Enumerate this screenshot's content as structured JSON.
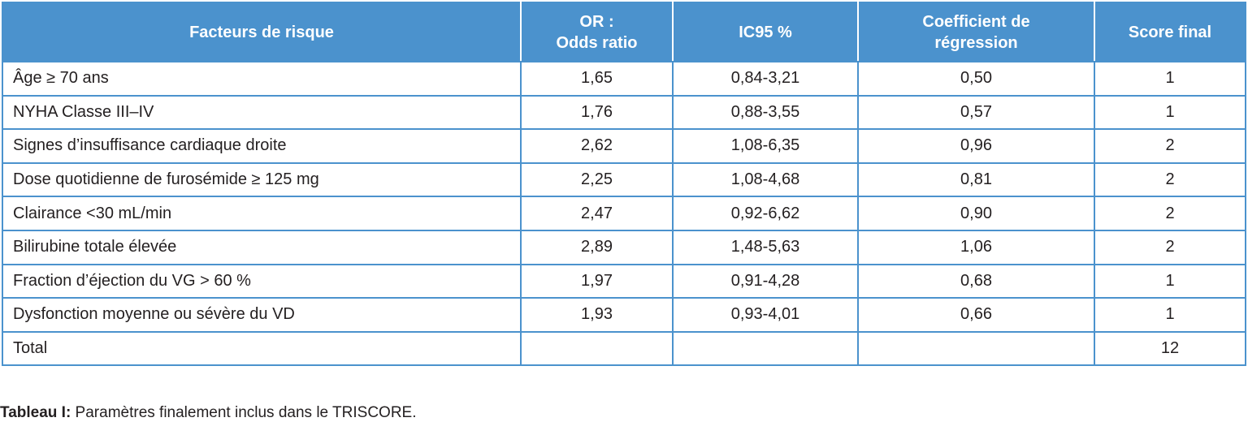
{
  "table": {
    "header": [
      "Facteurs de risque",
      "OR :\nOdds ratio",
      "IC95 %",
      "Coefficient de\nrégression",
      "Score final"
    ],
    "rows": [
      [
        "Âge ≥ 70 ans",
        "1,65",
        "0,84-3,21",
        "0,50",
        "1"
      ],
      [
        "NYHA Classe III–IV",
        "1,76",
        "0,88-3,55",
        "0,57",
        "1"
      ],
      [
        "Signes d’insuffisance cardiaque droite",
        "2,62",
        "1,08-6,35",
        "0,96",
        "2"
      ],
      [
        "Dose quotidienne de furosémide ≥ 125 mg",
        "2,25",
        "1,08-4,68",
        "0,81",
        "2"
      ],
      [
        "Clairance <30 mL/min",
        "2,47",
        "0,92-6,62",
        "0,90",
        "2"
      ],
      [
        "Bilirubine totale élevée",
        "2,89",
        "1,48-5,63",
        "1,06",
        "2"
      ],
      [
        "Fraction d’éjection du VG > 60 %",
        "1,97",
        "0,91-4,28",
        "0,68",
        "1"
      ],
      [
        "Dysfonction moyenne ou sévère du VD",
        "1,93",
        "0,93-4,01",
        "0,66",
        "1"
      ],
      [
        "Total",
        null,
        null,
        null,
        "12"
      ]
    ]
  },
  "caption": {
    "label": "Tableau I:",
    "text": " Paramètres finalement inclus dans le TRISCORE."
  }
}
